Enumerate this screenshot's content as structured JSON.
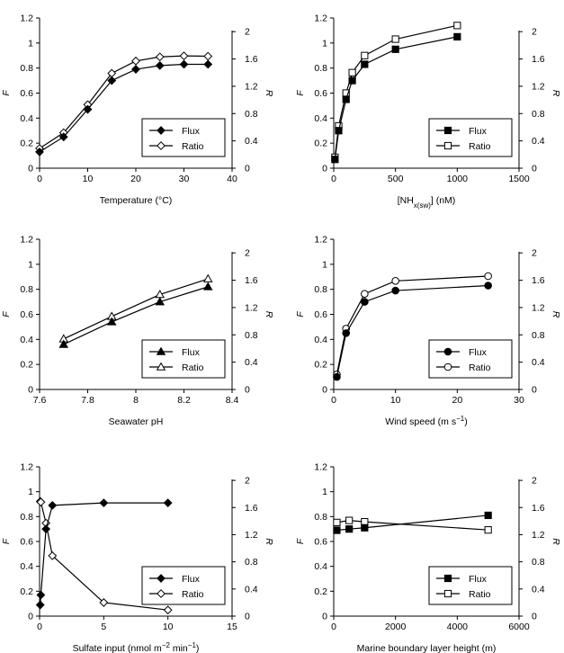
{
  "chart_data": [
    {
      "type": "line",
      "xlabel": "Temperature (°C)",
      "ylabel_left": "F",
      "ylabel_right": "R",
      "xlim": [
        0,
        40
      ],
      "xticks": [
        0,
        10,
        20,
        30,
        40
      ],
      "ylim_left": [
        0,
        1.2
      ],
      "yticks_left": [
        0,
        0.2,
        0.4,
        0.6,
        0.8,
        1,
        1.2
      ],
      "ylim_right": [
        0,
        2.2
      ],
      "yticks_right": [
        0,
        0.4,
        0.8,
        1.2,
        1.6,
        2
      ],
      "marker_shape": "diamond",
      "legend": "bottom-right",
      "series": [
        {
          "name": "Flux",
          "axis": "left",
          "filled": true,
          "x": [
            0,
            5,
            10,
            15,
            20,
            25,
            30,
            35
          ],
          "y": [
            0.13,
            0.25,
            0.47,
            0.7,
            0.79,
            0.82,
            0.83,
            0.83
          ]
        },
        {
          "name": "Ratio",
          "axis": "right",
          "filled": false,
          "x": [
            0,
            5,
            10,
            15,
            20,
            25,
            30,
            35
          ],
          "y": [
            0.29,
            0.52,
            0.93,
            1.39,
            1.57,
            1.63,
            1.645,
            1.64
          ]
        }
      ]
    },
    {
      "type": "line",
      "xlabel": "[NH",
      "xlabel_sub": "x(sw)",
      "xlabel_rest": "] (nM)",
      "ylabel_left": "F",
      "ylabel_right": "R",
      "xlim": [
        0,
        1500
      ],
      "xticks": [
        0,
        500,
        1000,
        1500
      ],
      "ylim_left": [
        0,
        1.2
      ],
      "yticks_left": [
        0,
        0.2,
        0.4,
        0.6,
        0.8,
        1,
        1.2
      ],
      "ylim_right": [
        0,
        2.2
      ],
      "yticks_right": [
        0,
        0.4,
        0.8,
        1.2,
        1.6,
        2
      ],
      "marker_shape": "square",
      "legend": "bottom-right",
      "series": [
        {
          "name": "Flux",
          "axis": "left",
          "filled": true,
          "x": [
            10,
            40,
            100,
            150,
            250,
            500,
            1000
          ],
          "y": [
            0.07,
            0.3,
            0.55,
            0.7,
            0.83,
            0.95,
            1.05
          ]
        },
        {
          "name": "Ratio",
          "axis": "right",
          "filled": false,
          "x": [
            10,
            40,
            100,
            150,
            250,
            500,
            1000
          ],
          "y": [
            0.16,
            0.62,
            1.1,
            1.4,
            1.65,
            1.89,
            2.09
          ]
        }
      ]
    },
    {
      "type": "line",
      "xlabel": "Seawater pH",
      "ylabel_left": "F",
      "ylabel_right": "R",
      "xlim": [
        7.6,
        8.4
      ],
      "xticks": [
        7.6,
        7.8,
        8,
        8.2,
        8.4
      ],
      "ylim_left": [
        0,
        1.2
      ],
      "yticks_left": [
        0,
        0.2,
        0.4,
        0.6,
        0.8,
        1,
        1.2
      ],
      "ylim_right": [
        0,
        2.2
      ],
      "yticks_right": [
        0,
        0.4,
        0.8,
        1.2,
        1.6,
        2
      ],
      "marker_shape": "triangle",
      "legend": "bottom-right",
      "series": [
        {
          "name": "Flux",
          "axis": "left",
          "filled": true,
          "x": [
            7.7,
            7.9,
            8.1,
            8.3
          ],
          "y": [
            0.36,
            0.54,
            0.7,
            0.82
          ]
        },
        {
          "name": "Ratio",
          "axis": "right",
          "filled": false,
          "x": [
            7.7,
            7.9,
            8.1,
            8.3
          ],
          "y": [
            0.74,
            1.07,
            1.39,
            1.62
          ]
        }
      ]
    },
    {
      "type": "line",
      "xlabel": "Wind speed (m s",
      "xlabel_sup": "−1",
      "xlabel_rest": ")",
      "ylabel_left": "F",
      "ylabel_right": "R",
      "xlim": [
        0,
        30
      ],
      "xticks": [
        0,
        10,
        20,
        30
      ],
      "ylim_left": [
        0,
        1.2
      ],
      "yticks_left": [
        0,
        0.2,
        0.4,
        0.6,
        0.8,
        1,
        1.2
      ],
      "ylim_right": [
        0,
        2.2
      ],
      "yticks_right": [
        0,
        0.4,
        0.8,
        1.2,
        1.6,
        2
      ],
      "marker_shape": "circle",
      "legend": "bottom-right",
      "series": [
        {
          "name": "Flux",
          "axis": "left",
          "filled": true,
          "x": [
            0.5,
            2,
            5,
            10,
            25
          ],
          "y": [
            0.1,
            0.45,
            0.7,
            0.79,
            0.83
          ]
        },
        {
          "name": "Ratio",
          "axis": "right",
          "filled": false,
          "x": [
            0.5,
            2,
            5,
            10,
            25
          ],
          "y": [
            0.22,
            0.89,
            1.4,
            1.59,
            1.66
          ]
        }
      ]
    },
    {
      "type": "line",
      "xlabel": "Sulfate input (nmol m",
      "xlabel_sup": "−2",
      "xlabel_mid": " min",
      "xlabel_sup2": "−1",
      "xlabel_rest": ")",
      "ylabel_left": "F",
      "ylabel_right": "R",
      "xlim": [
        0,
        15
      ],
      "xticks": [
        0,
        5,
        10,
        15
      ],
      "ylim_left": [
        0,
        1.2
      ],
      "yticks_left": [
        0,
        0.2,
        0.4,
        0.6,
        0.8,
        1,
        1.2
      ],
      "ylim_right": [
        0,
        2.2
      ],
      "yticks_right": [
        0,
        0.4,
        0.8,
        1.2,
        1.6,
        2
      ],
      "marker_shape": "diamond",
      "legend": "bottom-right",
      "series": [
        {
          "name": "Flux",
          "axis": "left",
          "filled": true,
          "x": [
            0.05,
            0.1,
            0.5,
            1,
            5,
            10
          ],
          "y": [
            0.09,
            0.17,
            0.7,
            0.89,
            0.91,
            0.91
          ]
        },
        {
          "name": "Ratio",
          "axis": "right",
          "filled": false,
          "x": [
            0.05,
            0.1,
            0.5,
            1,
            5,
            10
          ],
          "y": [
            1.69,
            1.68,
            1.37,
            0.89,
            0.2,
            0.09
          ]
        }
      ]
    },
    {
      "type": "line",
      "xlabel": "Marine boundary layer height (m)",
      "ylabel_left": "F",
      "ylabel_right": "R",
      "xlim": [
        0,
        6000
      ],
      "xticks": [
        0,
        2000,
        4000,
        6000
      ],
      "ylim_left": [
        0,
        1.2
      ],
      "yticks_left": [
        0,
        0.2,
        0.4,
        0.6,
        0.8,
        1,
        1.2
      ],
      "ylim_right": [
        0,
        2.2
      ],
      "yticks_right": [
        0,
        0.4,
        0.8,
        1.2,
        1.6,
        2
      ],
      "marker_shape": "square",
      "legend": "bottom-right",
      "series": [
        {
          "name": "Flux",
          "axis": "left",
          "filled": true,
          "x": [
            100,
            500,
            1000,
            5000
          ],
          "y": [
            0.69,
            0.7,
            0.71,
            0.81
          ]
        },
        {
          "name": "Ratio",
          "axis": "right",
          "filled": false,
          "x": [
            100,
            500,
            1000,
            5000
          ],
          "y": [
            1.38,
            1.41,
            1.39,
            1.27
          ]
        }
      ]
    }
  ]
}
